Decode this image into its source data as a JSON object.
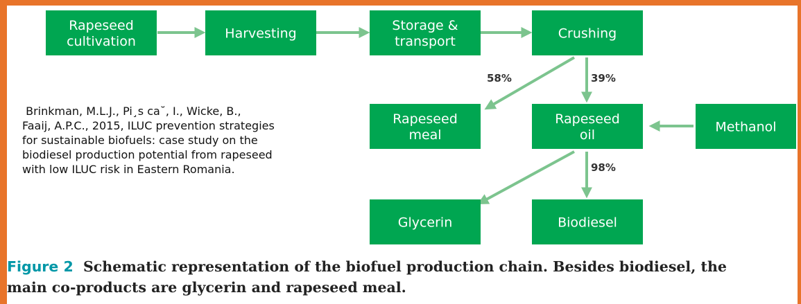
{
  "nodes": [
    {
      "lines": [
        "Rapeseed",
        "cultivation"
      ]
    },
    {
      "lines": [
        "Harvesting"
      ]
    },
    {
      "lines": [
        "Storage &",
        "transport"
      ]
    },
    {
      "lines": [
        "Crushing"
      ]
    },
    {
      "lines": [
        "Rapeseed",
        "meal"
      ]
    },
    {
      "lines": [
        "Rapeseed",
        "oil"
      ]
    },
    {
      "lines": [
        "Methanol"
      ]
    },
    {
      "lines": [
        "Glycerin"
      ]
    },
    {
      "lines": [
        "Biodiesel"
      ]
    }
  ],
  "edge_labels": [
    "58%",
    "39%",
    "98%"
  ],
  "citation": {
    "lines": [
      " Brinkman, M.L.J., Pi¸s ca˘, I., Wicke, B.,",
      "Faaij, A.P.C., 2015, ILUC prevention strategies",
      "for sustainable biofuels: case study on the",
      "biodiesel production potential from rapeseed",
      "with low ILUC risk in Eastern Romania."
    ]
  },
  "caption": {
    "label": "Figure 2",
    "lines": [
      "Schematic representation of the biofuel production chain. Besides biodiesel, the",
      "main co-products are glycerin and rapeseed meal."
    ]
  }
}
